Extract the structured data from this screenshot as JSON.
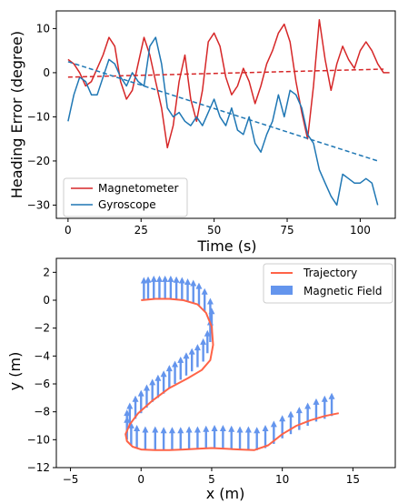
{
  "chart_data": [
    {
      "type": "line",
      "title": "",
      "xlabel": "Time (s)",
      "ylabel": "Heading Error (degree)",
      "xlim": [
        -4,
        112
      ],
      "ylim": [
        -33,
        14
      ],
      "xticks": [
        0,
        25,
        50,
        75,
        100
      ],
      "yticks": [
        10,
        0,
        -10,
        -20,
        -30
      ],
      "legend_position": "lower-left",
      "series": [
        {
          "name": "Magnetometer",
          "color": "#d62728",
          "x": [
            0,
            2,
            4,
            6,
            8,
            10,
            12,
            14,
            16,
            18,
            20,
            22,
            24,
            26,
            28,
            30,
            32,
            34,
            36,
            38,
            40,
            42,
            44,
            46,
            48,
            50,
            52,
            54,
            56,
            58,
            60,
            62,
            64,
            66,
            68,
            70,
            72,
            74,
            76,
            78,
            80,
            82,
            84,
            86,
            88,
            90,
            92,
            94,
            96,
            98,
            100,
            102,
            104,
            106,
            108,
            110
          ],
          "y": [
            3,
            2,
            0,
            -3,
            -2,
            1,
            4,
            8,
            6,
            -2,
            -6,
            -4,
            2,
            8,
            4,
            -2,
            -8,
            -17,
            -12,
            -2,
            4,
            -6,
            -11,
            -4,
            7,
            9,
            6,
            -1,
            -5,
            -3,
            1,
            -2,
            -7,
            -3,
            2,
            5,
            9,
            11,
            7,
            -2,
            -9,
            -15,
            -3,
            12,
            3,
            -4,
            2,
            6,
            3,
            1,
            5,
            7,
            5,
            2,
            0,
            0
          ]
        },
        {
          "name": "Gyroscope",
          "color": "#1f77b4",
          "x": [
            0,
            2,
            4,
            6,
            8,
            10,
            12,
            14,
            16,
            18,
            20,
            22,
            24,
            26,
            28,
            30,
            32,
            34,
            36,
            38,
            40,
            42,
            44,
            46,
            48,
            50,
            52,
            54,
            56,
            58,
            60,
            62,
            64,
            66,
            68,
            70,
            72,
            74,
            76,
            78,
            80,
            82,
            84,
            86,
            88,
            90,
            92,
            94,
            96,
            98,
            100,
            102,
            104,
            106
          ],
          "y": [
            -11,
            -5,
            -1,
            -2,
            -5,
            -5,
            -1,
            3,
            2,
            -1,
            -3,
            0,
            -2,
            -3,
            6,
            8,
            2,
            -8,
            -10,
            -9,
            -11,
            -12,
            -10,
            -12,
            -9,
            -6,
            -10,
            -12,
            -8,
            -13,
            -14,
            -10,
            -16,
            -18,
            -14,
            -11,
            -5,
            -10,
            -4,
            -5,
            -8,
            -14,
            -16,
            -22,
            -25,
            -28,
            -30,
            -23,
            -24,
            -25,
            -25,
            -24,
            -25,
            -30
          ]
        },
        {
          "name": "",
          "color": "#d62728",
          "dashed": true,
          "x": [
            0,
            108
          ],
          "y": [
            -1,
            0.8
          ]
        },
        {
          "name": "",
          "color": "#1f77b4",
          "dashed": true,
          "x": [
            0,
            106
          ],
          "y": [
            2.5,
            -20
          ]
        }
      ]
    },
    {
      "type": "line",
      "title": "",
      "xlabel": "x (m)",
      "ylabel": "y (m)",
      "xlim": [
        -6,
        18
      ],
      "ylim": [
        -12,
        3
      ],
      "xticks": [
        -5,
        0,
        5,
        10,
        15
      ],
      "yticks": [
        2,
        0,
        -2,
        -4,
        -6,
        -8,
        -10,
        -12
      ],
      "legend_position": "top-right",
      "series": [
        {
          "name": "Trajectory",
          "color": "#ff6347",
          "x": [
            0,
            1,
            2,
            3,
            4,
            4.6,
            5.0,
            5.1,
            4.9,
            4.3,
            3.3,
            2.0,
            0.8,
            -0.2,
            -0.8,
            -1.1,
            -1.0,
            -0.6,
            0,
            1,
            2,
            3,
            4,
            5,
            6,
            7,
            8,
            9,
            10,
            11,
            12,
            13,
            14
          ],
          "y": [
            0,
            0.1,
            0.1,
            0,
            -0.3,
            -0.9,
            -1.9,
            -3.2,
            -4.3,
            -5.0,
            -5.6,
            -6.3,
            -7.2,
            -8.1,
            -8.9,
            -9.6,
            -10.1,
            -10.5,
            -10.7,
            -10.75,
            -10.75,
            -10.7,
            -10.65,
            -10.6,
            -10.65,
            -10.7,
            -10.75,
            -10.4,
            -9.6,
            -9.0,
            -8.6,
            -8.3,
            -8.1
          ]
        }
      ],
      "field": {
        "name": "Magnetic Field",
        "color": "#6495ed",
        "points_x": [
          0.2,
          0.5,
          0.9,
          1.3,
          1.7,
          2.1,
          2.5,
          2.9,
          3.3,
          3.7,
          4.1,
          4.5,
          4.9,
          5.0,
          4.9,
          4.7,
          4.4,
          4.0,
          3.6,
          3.2,
          2.8,
          2.4,
          2.0,
          1.6,
          1.2,
          0.8,
          0.4,
          0,
          -0.4,
          -0.8,
          -1.0,
          -1.0,
          -0.7,
          -0.3,
          0.3,
          1.0,
          1.6,
          2.2,
          2.8,
          3.4,
          4.0,
          4.6,
          5.2,
          5.8,
          6.4,
          7.0,
          7.6,
          8.2,
          8.8,
          9.4,
          10.0,
          10.6,
          11.2,
          11.8,
          12.4,
          13.0,
          13.5
        ],
        "points_y": [
          0,
          0.05,
          0.1,
          0.1,
          0.1,
          0.1,
          0.05,
          0,
          -0.1,
          -0.2,
          -0.4,
          -0.8,
          -1.5,
          -2.2,
          -3.0,
          -3.8,
          -4.4,
          -4.8,
          -5.1,
          -5.4,
          -5.7,
          -6.0,
          -6.3,
          -6.7,
          -7.0,
          -7.3,
          -7.7,
          -8.1,
          -8.5,
          -9.0,
          -9.5,
          -10.0,
          -10.4,
          -10.6,
          -10.7,
          -10.7,
          -10.75,
          -10.75,
          -10.75,
          -10.7,
          -10.7,
          -10.65,
          -10.6,
          -10.6,
          -10.65,
          -10.7,
          -10.7,
          -10.75,
          -10.6,
          -10.3,
          -9.9,
          -9.6,
          -9.3,
          -9.0,
          -8.7,
          -8.5,
          -8.3
        ],
        "vector_dy": 1.6
      }
    }
  ]
}
